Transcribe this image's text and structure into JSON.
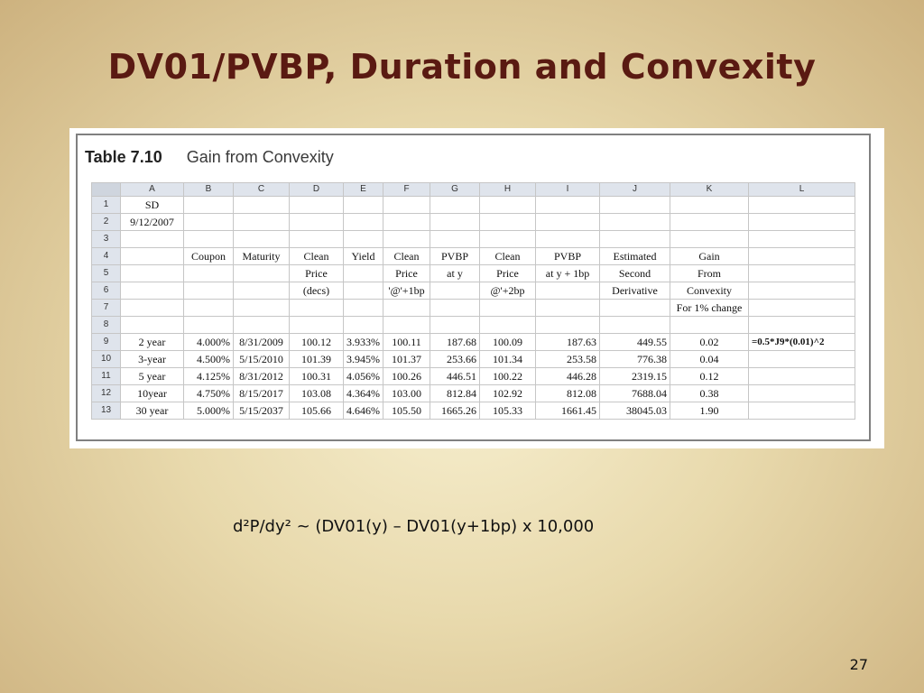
{
  "slide": {
    "title": "DV01/PVBP, Duration and Convexity",
    "formula": "d²P/dy² ~ (DV01(y) – DV01(y+1bp) x 10,000",
    "page_number": "27"
  },
  "table": {
    "number": "Table 7.10",
    "caption": "Gain from Convexity",
    "columns": [
      "A",
      "B",
      "C",
      "D",
      "E",
      "F",
      "G",
      "H",
      "I",
      "J",
      "K",
      "L"
    ],
    "rows": [
      {
        "n": "1",
        "cells": [
          "SD",
          "",
          "",
          "",
          "",
          "",
          "",
          "",
          "",
          "",
          "",
          ""
        ]
      },
      {
        "n": "2",
        "cells": [
          "9/12/2007",
          "",
          "",
          "",
          "",
          "",
          "",
          "",
          "",
          "",
          "",
          ""
        ]
      },
      {
        "n": "3",
        "cells": [
          "",
          "",
          "",
          "",
          "",
          "",
          "",
          "",
          "",
          "",
          "",
          ""
        ]
      },
      {
        "n": "4",
        "cells": [
          "",
          "Coupon",
          "Maturity",
          "Clean",
          "Yield",
          "Clean",
          "PVBP",
          "Clean",
          "PVBP",
          "Estimated",
          "Gain",
          ""
        ]
      },
      {
        "n": "5",
        "cells": [
          "",
          "",
          "",
          "Price",
          "",
          "Price",
          "at y",
          "Price",
          "at y + 1bp",
          "Second",
          "From",
          ""
        ]
      },
      {
        "n": "6",
        "cells": [
          "",
          "",
          "",
          "(decs)",
          "",
          "'@'+1bp",
          "",
          "@'+2bp",
          "",
          "Derivative",
          "Convexity",
          ""
        ]
      },
      {
        "n": "7",
        "cells": [
          "",
          "",
          "",
          "",
          "",
          "",
          "",
          "",
          "",
          "",
          "For 1% change",
          ""
        ]
      },
      {
        "n": "8",
        "cells": [
          "",
          "",
          "",
          "",
          "",
          "",
          "",
          "",
          "",
          "",
          "",
          ""
        ]
      },
      {
        "n": "9",
        "cells": [
          "2 year",
          "4.000%",
          "8/31/2009",
          "100.12",
          "3.933%",
          "100.11",
          "187.68",
          "100.09",
          "187.63",
          "449.55",
          "0.02",
          "=0.5*J9*(0.01)^2"
        ]
      },
      {
        "n": "10",
        "cells": [
          "3-year",
          "4.500%",
          "5/15/2010",
          "101.39",
          "3.945%",
          "101.37",
          "253.66",
          "101.34",
          "253.58",
          "776.38",
          "0.04",
          ""
        ]
      },
      {
        "n": "11",
        "cells": [
          "5 year",
          "4.125%",
          "8/31/2012",
          "100.31",
          "4.056%",
          "100.26",
          "446.51",
          "100.22",
          "446.28",
          "2319.15",
          "0.12",
          ""
        ]
      },
      {
        "n": "12",
        "cells": [
          "10year",
          "4.750%",
          "8/15/2017",
          "103.08",
          "4.364%",
          "103.00",
          "812.84",
          "102.92",
          "812.08",
          "7688.04",
          "0.38",
          ""
        ]
      },
      {
        "n": "13",
        "cells": [
          "30 year",
          "5.000%",
          "5/15/2037",
          "105.66",
          "4.646%",
          "105.50",
          "1665.26",
          "105.33",
          "1661.45",
          "38045.03",
          "1.90",
          ""
        ]
      }
    ]
  }
}
